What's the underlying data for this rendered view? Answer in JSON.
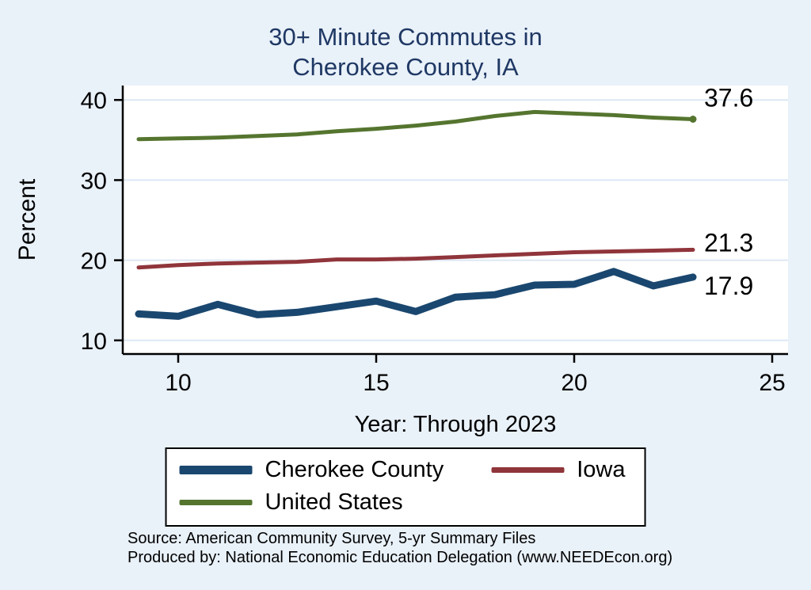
{
  "chart_data": {
    "type": "line",
    "title_lines": [
      "30+ Minute Commutes in",
      "Cherokee County, IA"
    ],
    "xlabel": "Year: Through 2023",
    "ylabel": "Percent",
    "x": [
      9,
      10,
      11,
      12,
      13,
      14,
      15,
      16,
      17,
      18,
      19,
      20,
      21,
      22,
      23
    ],
    "series": [
      {
        "name": "Cherokee County",
        "color": "#1a476f",
        "width": 9,
        "marker": false,
        "end_label": "17.9",
        "values": [
          13.3,
          13.0,
          14.5,
          13.2,
          13.5,
          14.2,
          14.9,
          13.6,
          15.4,
          15.7,
          16.9,
          17.0,
          18.6,
          16.8,
          17.9
        ]
      },
      {
        "name": "Iowa",
        "color": "#90353b",
        "width": 5,
        "marker": false,
        "end_label": "21.3",
        "values": [
          19.1,
          19.4,
          19.6,
          19.7,
          19.8,
          20.1,
          20.1,
          20.2,
          20.4,
          20.6,
          20.8,
          21.0,
          21.1,
          21.2,
          21.3
        ]
      },
      {
        "name": "United States",
        "color": "#55752f",
        "width": 5,
        "marker": true,
        "end_label": "37.6",
        "values": [
          35.1,
          35.2,
          35.3,
          35.5,
          35.7,
          36.1,
          36.4,
          36.8,
          37.3,
          38.0,
          38.5,
          38.3,
          38.1,
          37.8,
          37.6
        ]
      }
    ],
    "xticks": [
      10,
      15,
      20,
      25
    ],
    "yticks": [
      10,
      20,
      30,
      40
    ],
    "xlim": [
      8.6,
      25.4
    ],
    "ylim": [
      8.3,
      41.8
    ],
    "grid": true,
    "legend_position": "bottom"
  },
  "notes": {
    "source": "Source: American Community Survey, 5-yr Summary Files",
    "produced": "Produced by: National Economic Education Delegation (www.NEEDEcon.org)"
  },
  "colors": {
    "page_background": "#e9f1f9",
    "plot_background": "#ffffff",
    "gridline": "#dce8f4",
    "title_text": "#1f3864",
    "axis_text": "#000000"
  }
}
